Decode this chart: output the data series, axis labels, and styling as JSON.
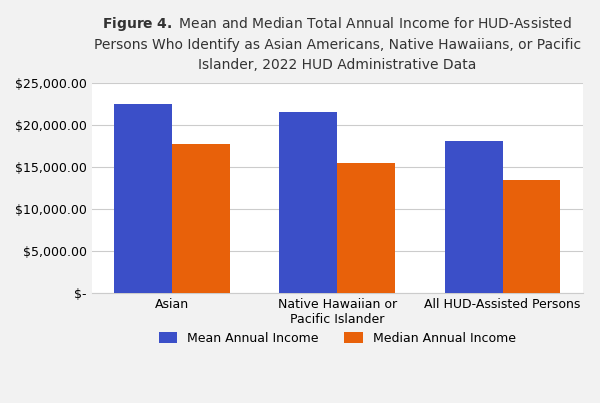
{
  "categories": [
    "Asian",
    "Native Hawaiian or\nPacific Islander",
    "All HUD-Assisted Persons"
  ],
  "mean_values": [
    22500,
    21500,
    18100
  ],
  "median_values": [
    17700,
    15500,
    13500
  ],
  "mean_color": "#3B4FC8",
  "median_color": "#E8610A",
  "ylim": [
    0,
    25000
  ],
  "yticks": [
    0,
    5000,
    10000,
    15000,
    20000,
    25000
  ],
  "ytick_labels": [
    "$-",
    "$5,000.00",
    "$10,000.00",
    "$15,000.00",
    "$20,000.00",
    "$25,000.00"
  ],
  "legend_mean": "Mean Annual Income",
  "legend_median": "Median Annual Income",
  "bar_width": 0.35,
  "background_color": "#f2f2f2",
  "plot_bg_color": "#ffffff",
  "grid_color": "#cccccc",
  "title_fontsize": 10,
  "tick_fontsize": 9,
  "legend_fontsize": 9,
  "full_title": "$\\bf{Figure\\ 4.}$ Mean and Median Total Annual Income for HUD-Assisted\nPersons Who Identify as Asian Americans, Native Hawaiians, or Pacific\nIslander, 2022 HUD Administrative Data"
}
